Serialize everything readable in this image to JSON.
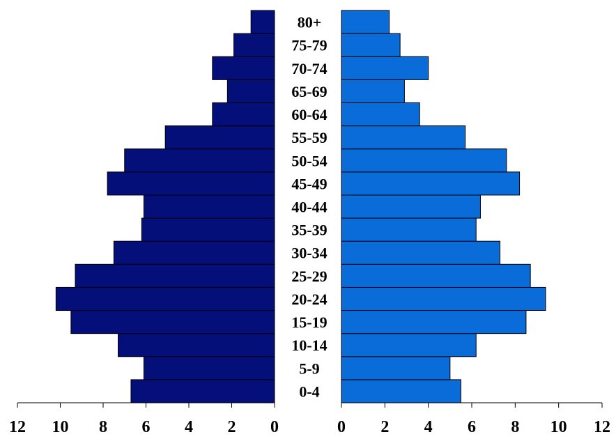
{
  "chart_data": {
    "type": "bar",
    "orientation": "horizontal",
    "layout": "population-pyramid",
    "categories": [
      "0-4",
      "5-9",
      "10-14",
      "15-19",
      "20-24",
      "25-29",
      "30-34",
      "35-39",
      "40-44",
      "45-49",
      "50-54",
      "55-59",
      "60-64",
      "65-69",
      "70-74",
      "75-79",
      "80+"
    ],
    "series": [
      {
        "side": "left",
        "values": [
          6.7,
          6.1,
          7.3,
          9.5,
          10.2,
          9.3,
          7.5,
          6.2,
          6.1,
          7.8,
          7.0,
          5.1,
          2.9,
          2.2,
          2.9,
          1.9,
          1.1
        ],
        "color": "#050F7A"
      },
      {
        "side": "right",
        "values": [
          5.5,
          5.0,
          6.2,
          8.5,
          9.4,
          8.7,
          7.3,
          6.2,
          6.4,
          8.2,
          7.6,
          5.7,
          3.6,
          2.9,
          4.0,
          2.7,
          2.2
        ],
        "color": "#0A6CD9"
      }
    ],
    "left_axis": {
      "range": [
        12,
        0
      ],
      "ticks": [
        "12",
        "10",
        "8",
        "6",
        "4",
        "2",
        "0"
      ]
    },
    "right_axis": {
      "range": [
        0,
        12
      ],
      "ticks": [
        "0",
        "2",
        "4",
        "6",
        "8",
        "10",
        "12"
      ]
    },
    "title": "",
    "xlabel": "",
    "ylabel": "",
    "grid": false,
    "legend": "none"
  }
}
